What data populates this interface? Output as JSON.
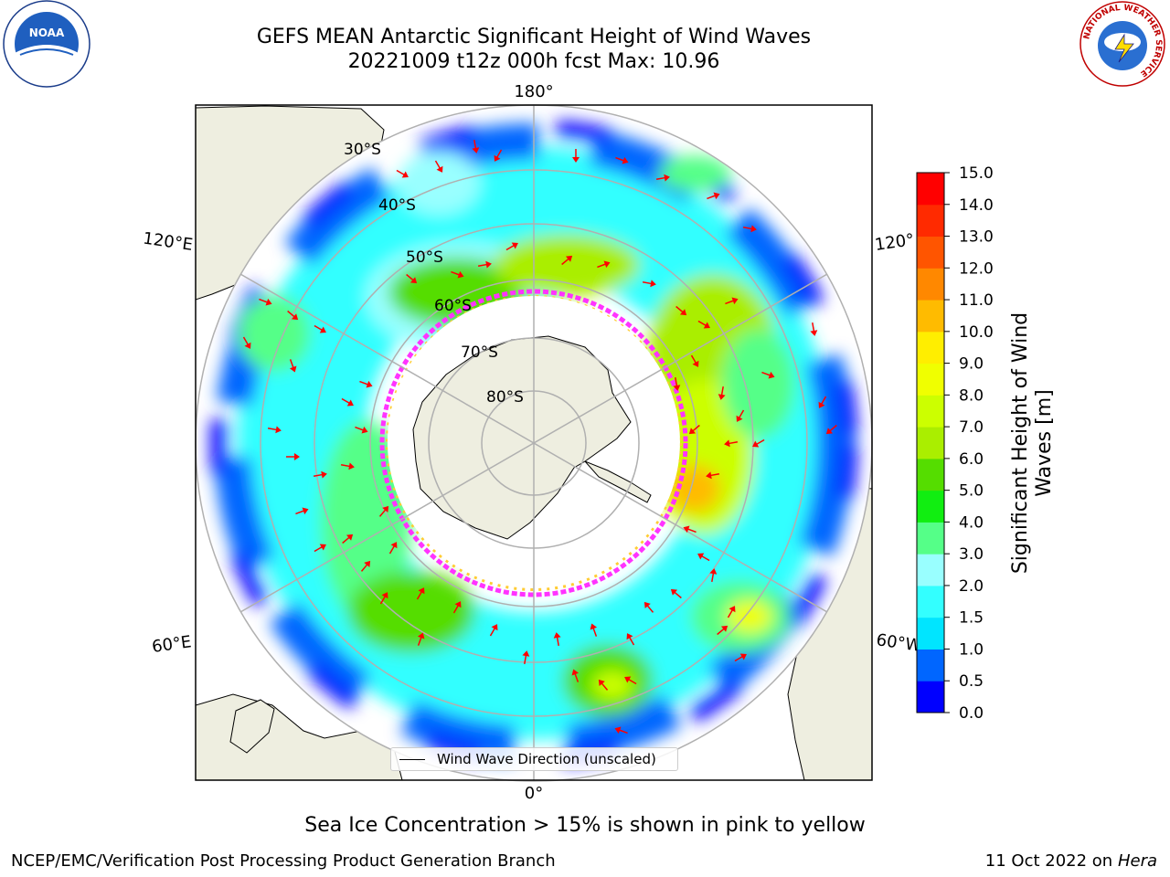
{
  "header": {
    "title_line1": "GEFS MEAN Antarctic Significant Height of Wind Waves",
    "title_line2": "20221009 t12z 000h fcst   Max: 10.96"
  },
  "map": {
    "projection": "south-polar-stereographic",
    "longitude_labels": [
      "180°",
      "120°E",
      "120°",
      "60°E",
      "60°W",
      "0°"
    ],
    "latitude_labels": [
      "30°S",
      "40°S",
      "50°S",
      "60°S",
      "70°S",
      "80°S"
    ],
    "land_color": "#eeeee0",
    "ocean_no_data_color": "#ffffff",
    "grid_color": "#b0b0b0",
    "arrow_color": "#ff0000",
    "sea_ice_colors": [
      "#ff33ff",
      "#ffcc33"
    ],
    "legend": {
      "wind_wave_direction": "Wind Wave Direction (unscaled)"
    }
  },
  "colorbar": {
    "label": "Significant Height of Wind Waves [m]",
    "ticks": [
      "0.0",
      "0.5",
      "1.0",
      "1.5",
      "2.0",
      "3.0",
      "4.0",
      "5.0",
      "6.0",
      "7.0",
      "8.0",
      "9.0",
      "10.0",
      "11.0",
      "12.0",
      "13.0",
      "14.0",
      "15.0"
    ],
    "colors": [
      "#0000ff",
      "#0066ff",
      "#00e5ff",
      "#33ffff",
      "#99ffff",
      "#55ff88",
      "#11ee11",
      "#55dd00",
      "#aaee00",
      "#ccff00",
      "#f0ff00",
      "#ffee00",
      "#ffbb00",
      "#ff8800",
      "#ff5500",
      "#ff2a00",
      "#ff0000"
    ]
  },
  "notes": {
    "sea_ice": "Sea Ice Concentration > 15% is shown in pink to yellow"
  },
  "footer": {
    "producer": "NCEP/EMC/Verification Post Processing Product Generation Branch",
    "date": "11 Oct 2022 on",
    "machine": "Hera"
  },
  "logos": {
    "left": "NOAA",
    "right_ring": "NATIONAL WEATHER SERVICE"
  }
}
